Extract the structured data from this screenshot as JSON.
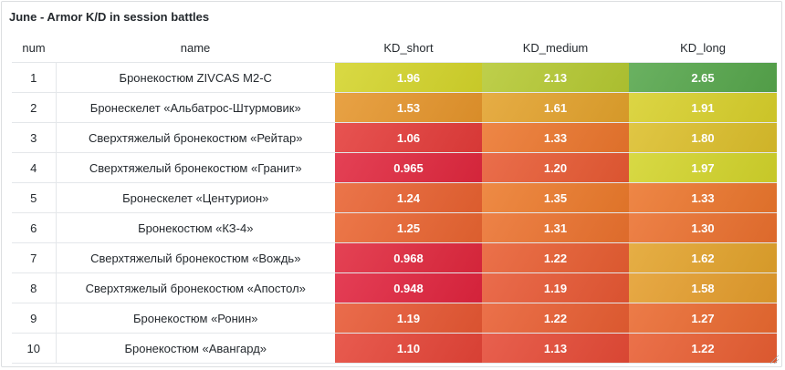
{
  "panel": {
    "title": "June - Armor K/D in session battles"
  },
  "table": {
    "columns": [
      "num",
      "name",
      "KD_short",
      "KD_medium",
      "KD_long"
    ],
    "rows": [
      {
        "num": "1",
        "name": "Бронекостюм ZIVCAS M2-C",
        "kd_short": "1.96",
        "kd_medium": "2.13",
        "kd_long": "2.65"
      },
      {
        "num": "2",
        "name": "Бронескелет «Альбатрос-Штурмовик»",
        "kd_short": "1.53",
        "kd_medium": "1.61",
        "kd_long": "1.91"
      },
      {
        "num": "3",
        "name": "Сверхтяжелый бронекостюм «Рейтар»",
        "kd_short": "1.06",
        "kd_medium": "1.33",
        "kd_long": "1.80"
      },
      {
        "num": "4",
        "name": "Сверхтяжелый бронекостюм «Гранит»",
        "kd_short": "0.965",
        "kd_medium": "1.20",
        "kd_long": "1.97"
      },
      {
        "num": "5",
        "name": "Бронескелет «Центурион»",
        "kd_short": "1.24",
        "kd_medium": "1.35",
        "kd_long": "1.33"
      },
      {
        "num": "6",
        "name": "Бронекостюм «КЗ-4»",
        "kd_short": "1.25",
        "kd_medium": "1.31",
        "kd_long": "1.30"
      },
      {
        "num": "7",
        "name": "Сверхтяжелый бронекостюм «Вождь»",
        "kd_short": "0.968",
        "kd_medium": "1.22",
        "kd_long": "1.62"
      },
      {
        "num": "8",
        "name": "Сверхтяжелый бронекостюм «Апостол»",
        "kd_short": "0.948",
        "kd_medium": "1.19",
        "kd_long": "1.58"
      },
      {
        "num": "9",
        "name": "Бронекостюм «Ронин»",
        "kd_short": "1.19",
        "kd_medium": "1.22",
        "kd_long": "1.27"
      },
      {
        "num": "10",
        "name": "Бронекостюм «Авангард»",
        "kd_short": "1.10",
        "kd_medium": "1.13",
        "kd_long": "1.22"
      }
    ]
  },
  "colors": {
    "scale_low": "#e0243e",
    "scale_mid": "#ec7a2c",
    "scale_high_yellow": "#d6d52a",
    "scale_top_green": "#56a64b",
    "text_primary": "#24292e",
    "cell_text": "#ffffff",
    "border": "#dcdee1"
  },
  "icons": {
    "resize_handle": "resize-corner-icon"
  }
}
